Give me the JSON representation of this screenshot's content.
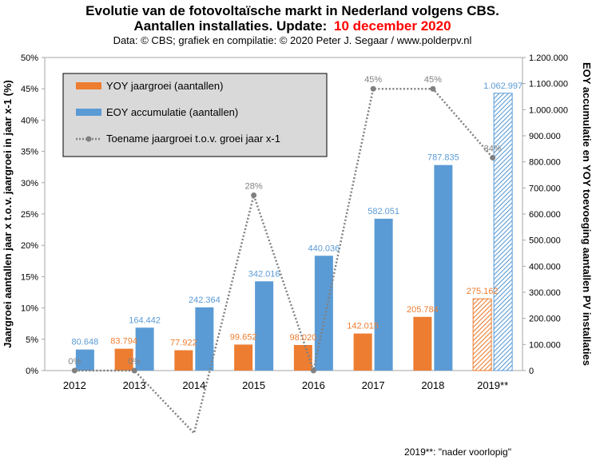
{
  "title_line1": "Evolutie van de fotovoltaïsche markt in Nederland volgens CBS.",
  "title_line2": "Aantallen installaties. Update:",
  "title_update": "10 december 2020",
  "subtitle": "Data: © CBS; grafiek en compilatie: © 2020 Peter J. Segaar / www.polderpv.nl",
  "footnote": "2019**: \"nader voorlopig\"",
  "colors": {
    "yoy": "#ed7d31",
    "eoy": "#5b9bd5",
    "line": "#808080",
    "title_update": "#ff0000"
  },
  "chart_data": {
    "type": "bar",
    "categories": [
      "2012",
      "2013",
      "2014",
      "2015",
      "2016",
      "2017",
      "2018",
      "2019**"
    ],
    "ylabel_left": "Jaargroei aantallen jaar x t.o.v. jaargroei in jaar x-1 (%)",
    "ylabel_right": "EOY accumulatie en YOY toevoeging aantallen PV installaties",
    "ylim_left": [
      0,
      50
    ],
    "ylim_right": [
      0,
      1200000
    ],
    "left_ticks": [
      "0%",
      "5%",
      "10%",
      "15%",
      "20%",
      "25%",
      "30%",
      "35%",
      "40%",
      "45%",
      "50%"
    ],
    "right_ticks": [
      "0",
      "100.000",
      "200.000",
      "300.000",
      "400.000",
      "500.000",
      "600.000",
      "700.000",
      "800.000",
      "900.000",
      "1.000.000",
      "1.100.000",
      "1.200.000"
    ],
    "legend_placement": "top-left",
    "grid": false,
    "series": [
      {
        "name": "YOY jaargroei (aantallen)",
        "axis": "right",
        "values": [
          null,
          83794,
          77922,
          99652,
          98020,
          142015,
          205784,
          275162
        ],
        "labels": [
          "",
          "83.794",
          "77.922",
          "99.652",
          "98.020",
          "142.015",
          "205.784",
          "275.162"
        ],
        "hatched_last": true
      },
      {
        "name": "EOY accumulatie (aantallen)",
        "axis": "right",
        "values": [
          80648,
          164442,
          242364,
          342016,
          440036,
          582051,
          787835,
          1062997
        ],
        "labels": [
          "80.648",
          "164.442",
          "242.364",
          "342.016",
          "440.036",
          "582.051",
          "787.835",
          "1.062.997"
        ],
        "hatched_last": true
      },
      {
        "name": "Toename jaargroei t.o.v. groei jaar x-1",
        "axis": "left",
        "type": "line",
        "values": [
          0,
          0,
          -10,
          28,
          0,
          45,
          45,
          34
        ],
        "labels": [
          "0%",
          "0%",
          "",
          "28%",
          "",
          "45%",
          "45%",
          "34%"
        ]
      }
    ]
  }
}
